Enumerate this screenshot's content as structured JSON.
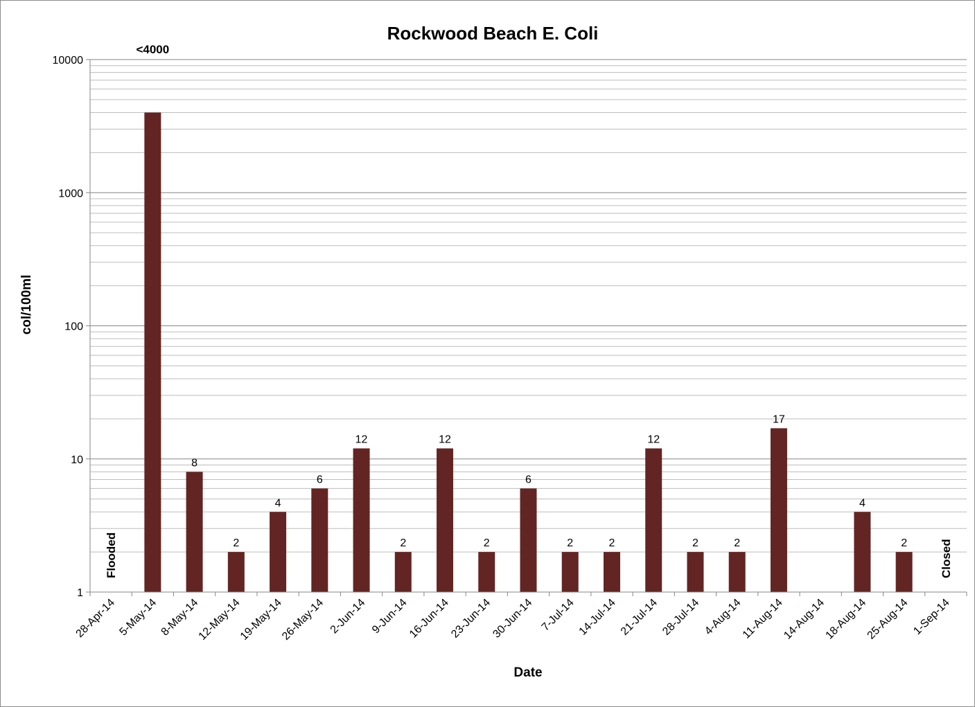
{
  "chart_data": {
    "type": "bar",
    "title": "Rockwood Beach E. Coli",
    "xlabel": "Date",
    "ylabel": "col/100ml",
    "yscale": "log",
    "ylim": [
      1,
      10000
    ],
    "yticks": [
      "1",
      "10",
      "100",
      "1000",
      "10000"
    ],
    "grid": true,
    "bar_color": "#632523",
    "categories": [
      "28-Apr-14",
      "5-May-14",
      "8-May-14",
      "12-May-14",
      "19-May-14",
      "26-May-14",
      "2-Jun-14",
      "9-Jun-14",
      "16-Jun-14",
      "23-Jun-14",
      "30-Jun-14",
      "7-Jul-14",
      "14-Jul-14",
      "21-Jul-14",
      "28-Jul-14",
      "4-Aug-14",
      "11-Aug-14",
      "14-Aug-14",
      "18-Aug-14",
      "25-Aug-14",
      "1-Sep-14"
    ],
    "values": [
      null,
      4000,
      8,
      2,
      4,
      6,
      12,
      2,
      12,
      2,
      6,
      2,
      2,
      12,
      2,
      2,
      17,
      null,
      4,
      2,
      null
    ],
    "data_labels": [
      "",
      "<4000",
      "8",
      "2",
      "4",
      "6",
      "12",
      "2",
      "12",
      "2",
      "6",
      "2",
      "2",
      "12",
      "2",
      "2",
      "17",
      "",
      "4",
      "2",
      ""
    ],
    "annotations": [
      {
        "category": "28-Apr-14",
        "text": "Flooded"
      },
      {
        "category": "1-Sep-14",
        "text": "Closed"
      }
    ]
  }
}
